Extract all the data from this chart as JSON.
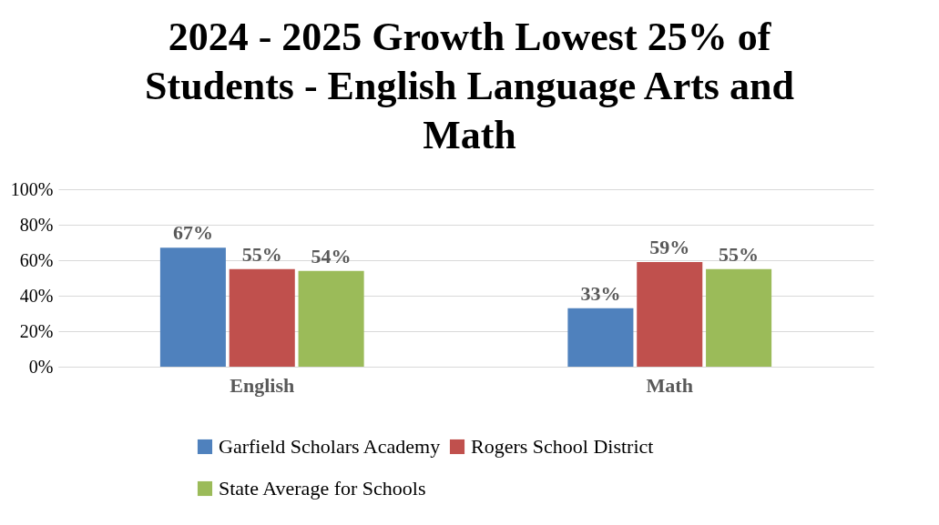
{
  "chart_data": {
    "type": "bar",
    "title": "2024 - 2025 Growth Lowest 25% of Students - English Language Arts and Math",
    "categories": [
      "English",
      "Math"
    ],
    "series": [
      {
        "name": "Garfield Scholars Academy",
        "color": "#4f81bd",
        "values": [
          67,
          33
        ],
        "value_labels": [
          "67%",
          "33%"
        ]
      },
      {
        "name": "Rogers School District",
        "color": "#c0504d",
        "values": [
          55,
          59
        ],
        "value_labels": [
          "55%",
          "59%"
        ]
      },
      {
        "name": "State Average for Schools",
        "color": "#9bbb59",
        "values": [
          54,
          55
        ],
        "value_labels": [
          "54%",
          "55%"
        ]
      }
    ],
    "ylim": [
      0,
      100
    ],
    "yticks": [
      {
        "value": 0,
        "label": "0%"
      },
      {
        "value": 20,
        "label": "20%"
      },
      {
        "value": 40,
        "label": "40%"
      },
      {
        "value": 60,
        "label": "60%"
      },
      {
        "value": 80,
        "label": "80%"
      },
      {
        "value": 100,
        "label": "100%"
      }
    ],
    "grid": "y",
    "legend": "bottom"
  }
}
